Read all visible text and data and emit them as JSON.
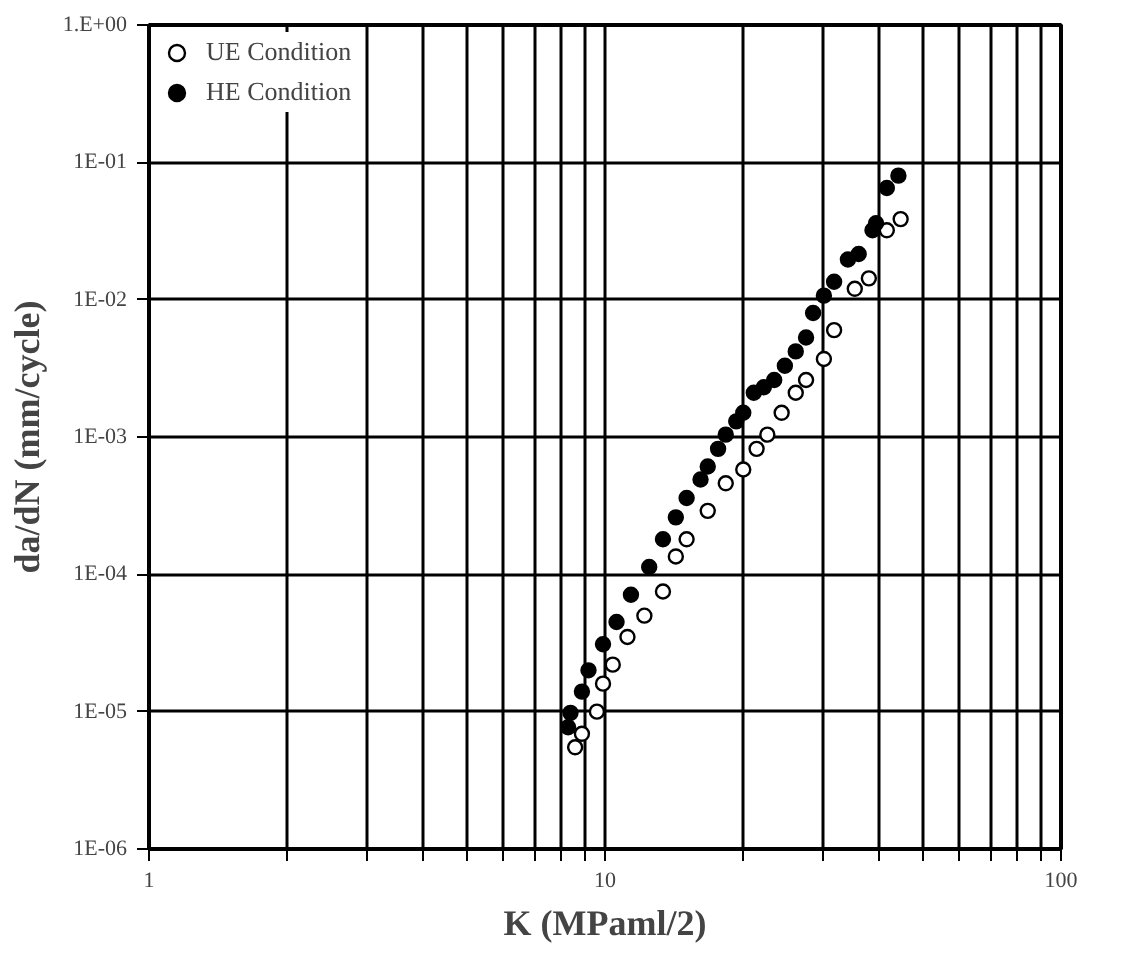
{
  "chart_data": {
    "type": "scatter",
    "xlabel": "K (MPaml/2)",
    "ylabel": "da/dN (mm/cycle)",
    "log": "xy",
    "grid": true,
    "legend": "top left",
    "marker": "circle",
    "xlim": [
      1,
      100
    ],
    "ylim": [
      1e-06,
      1
    ],
    "xticks": [
      1,
      {
        "value": 2,
        "label": null
      },
      {
        "value": 3,
        "label": null
      },
      {
        "value": 4,
        "label": null
      },
      {
        "value": 5,
        "label": null
      },
      {
        "value": 6,
        "label": null
      },
      {
        "value": 7,
        "label": null
      },
      {
        "value": 8,
        "label": null
      },
      {
        "value": 9,
        "label": null
      },
      10,
      {
        "value": 20,
        "label": null
      },
      {
        "value": 30,
        "label": null
      },
      {
        "value": 40,
        "label": null
      },
      {
        "value": 50,
        "label": null
      },
      {
        "value": 60,
        "label": null
      },
      {
        "value": 70,
        "label": null
      },
      {
        "value": 80,
        "label": null
      },
      {
        "value": 90,
        "label": null
      },
      100
    ],
    "yticks": [
      {
        "value": 1e-06,
        "label": "1E-06"
      },
      {
        "value": 1e-05,
        "label": "1E-05"
      },
      {
        "value": 0.0001,
        "label": "1E-04"
      },
      {
        "value": 0.001,
        "label": "1E-03"
      },
      {
        "value": 0.01,
        "label": "1E-02"
      },
      {
        "value": 0.1,
        "label": "1E-01"
      },
      {
        "value": 1,
        "label": "1.E+00"
      }
    ],
    "series": [
      {
        "name": "UE Condition",
        "color": "#ffffff",
        "x": [
          44.5,
          41.5,
          37.9,
          35.3,
          31.8,
          30.2,
          27.6,
          26.2,
          24.4,
          22.7,
          21.5,
          20.1,
          18.4,
          16.8,
          15.1,
          14.3,
          13.4,
          12.2,
          11.2,
          10.4,
          9.9,
          9.6,
          8.9,
          8.6
        ],
        "values": [
          0.0386,
          0.032,
          0.0143,
          0.012,
          0.006,
          0.0037,
          0.0026,
          0.0021,
          0.0015,
          0.00104,
          0.00082,
          0.00058,
          0.00046,
          0.00029,
          0.00018,
          0.000135,
          7.5e-05,
          5e-05,
          3.5e-05,
          2.2e-05,
          1.6e-05,
          1e-05,
          6.9e-06,
          5.5e-06
        ]
      },
      {
        "name": "HE Condition",
        "color": "#000000",
        "x": [
          44.0,
          41.5,
          39.3,
          38.6,
          36.0,
          34.1,
          31.8,
          30.2,
          28.6,
          27.6,
          26.2,
          24.8,
          23.5,
          22.3,
          21.2,
          20.1,
          19.4,
          18.4,
          17.7,
          16.8,
          16.2,
          15.1,
          14.3,
          13.4,
          12.5,
          11.4,
          10.6,
          9.9,
          9.2,
          8.9,
          8.4,
          8.3
        ],
        "values": [
          0.08,
          0.065,
          0.036,
          0.032,
          0.0215,
          0.0196,
          0.0135,
          0.0107,
          0.008,
          0.0053,
          0.0042,
          0.0033,
          0.0026,
          0.0023,
          0.0021,
          0.0015,
          0.0013,
          0.00104,
          0.00082,
          0.00061,
          0.00049,
          0.00036,
          0.00026,
          0.00018,
          0.000113,
          7.1e-05,
          4.5e-05,
          3.1e-05,
          2e-05,
          1.4e-05,
          9.8e-06,
          7.7e-06
        ]
      }
    ]
  }
}
